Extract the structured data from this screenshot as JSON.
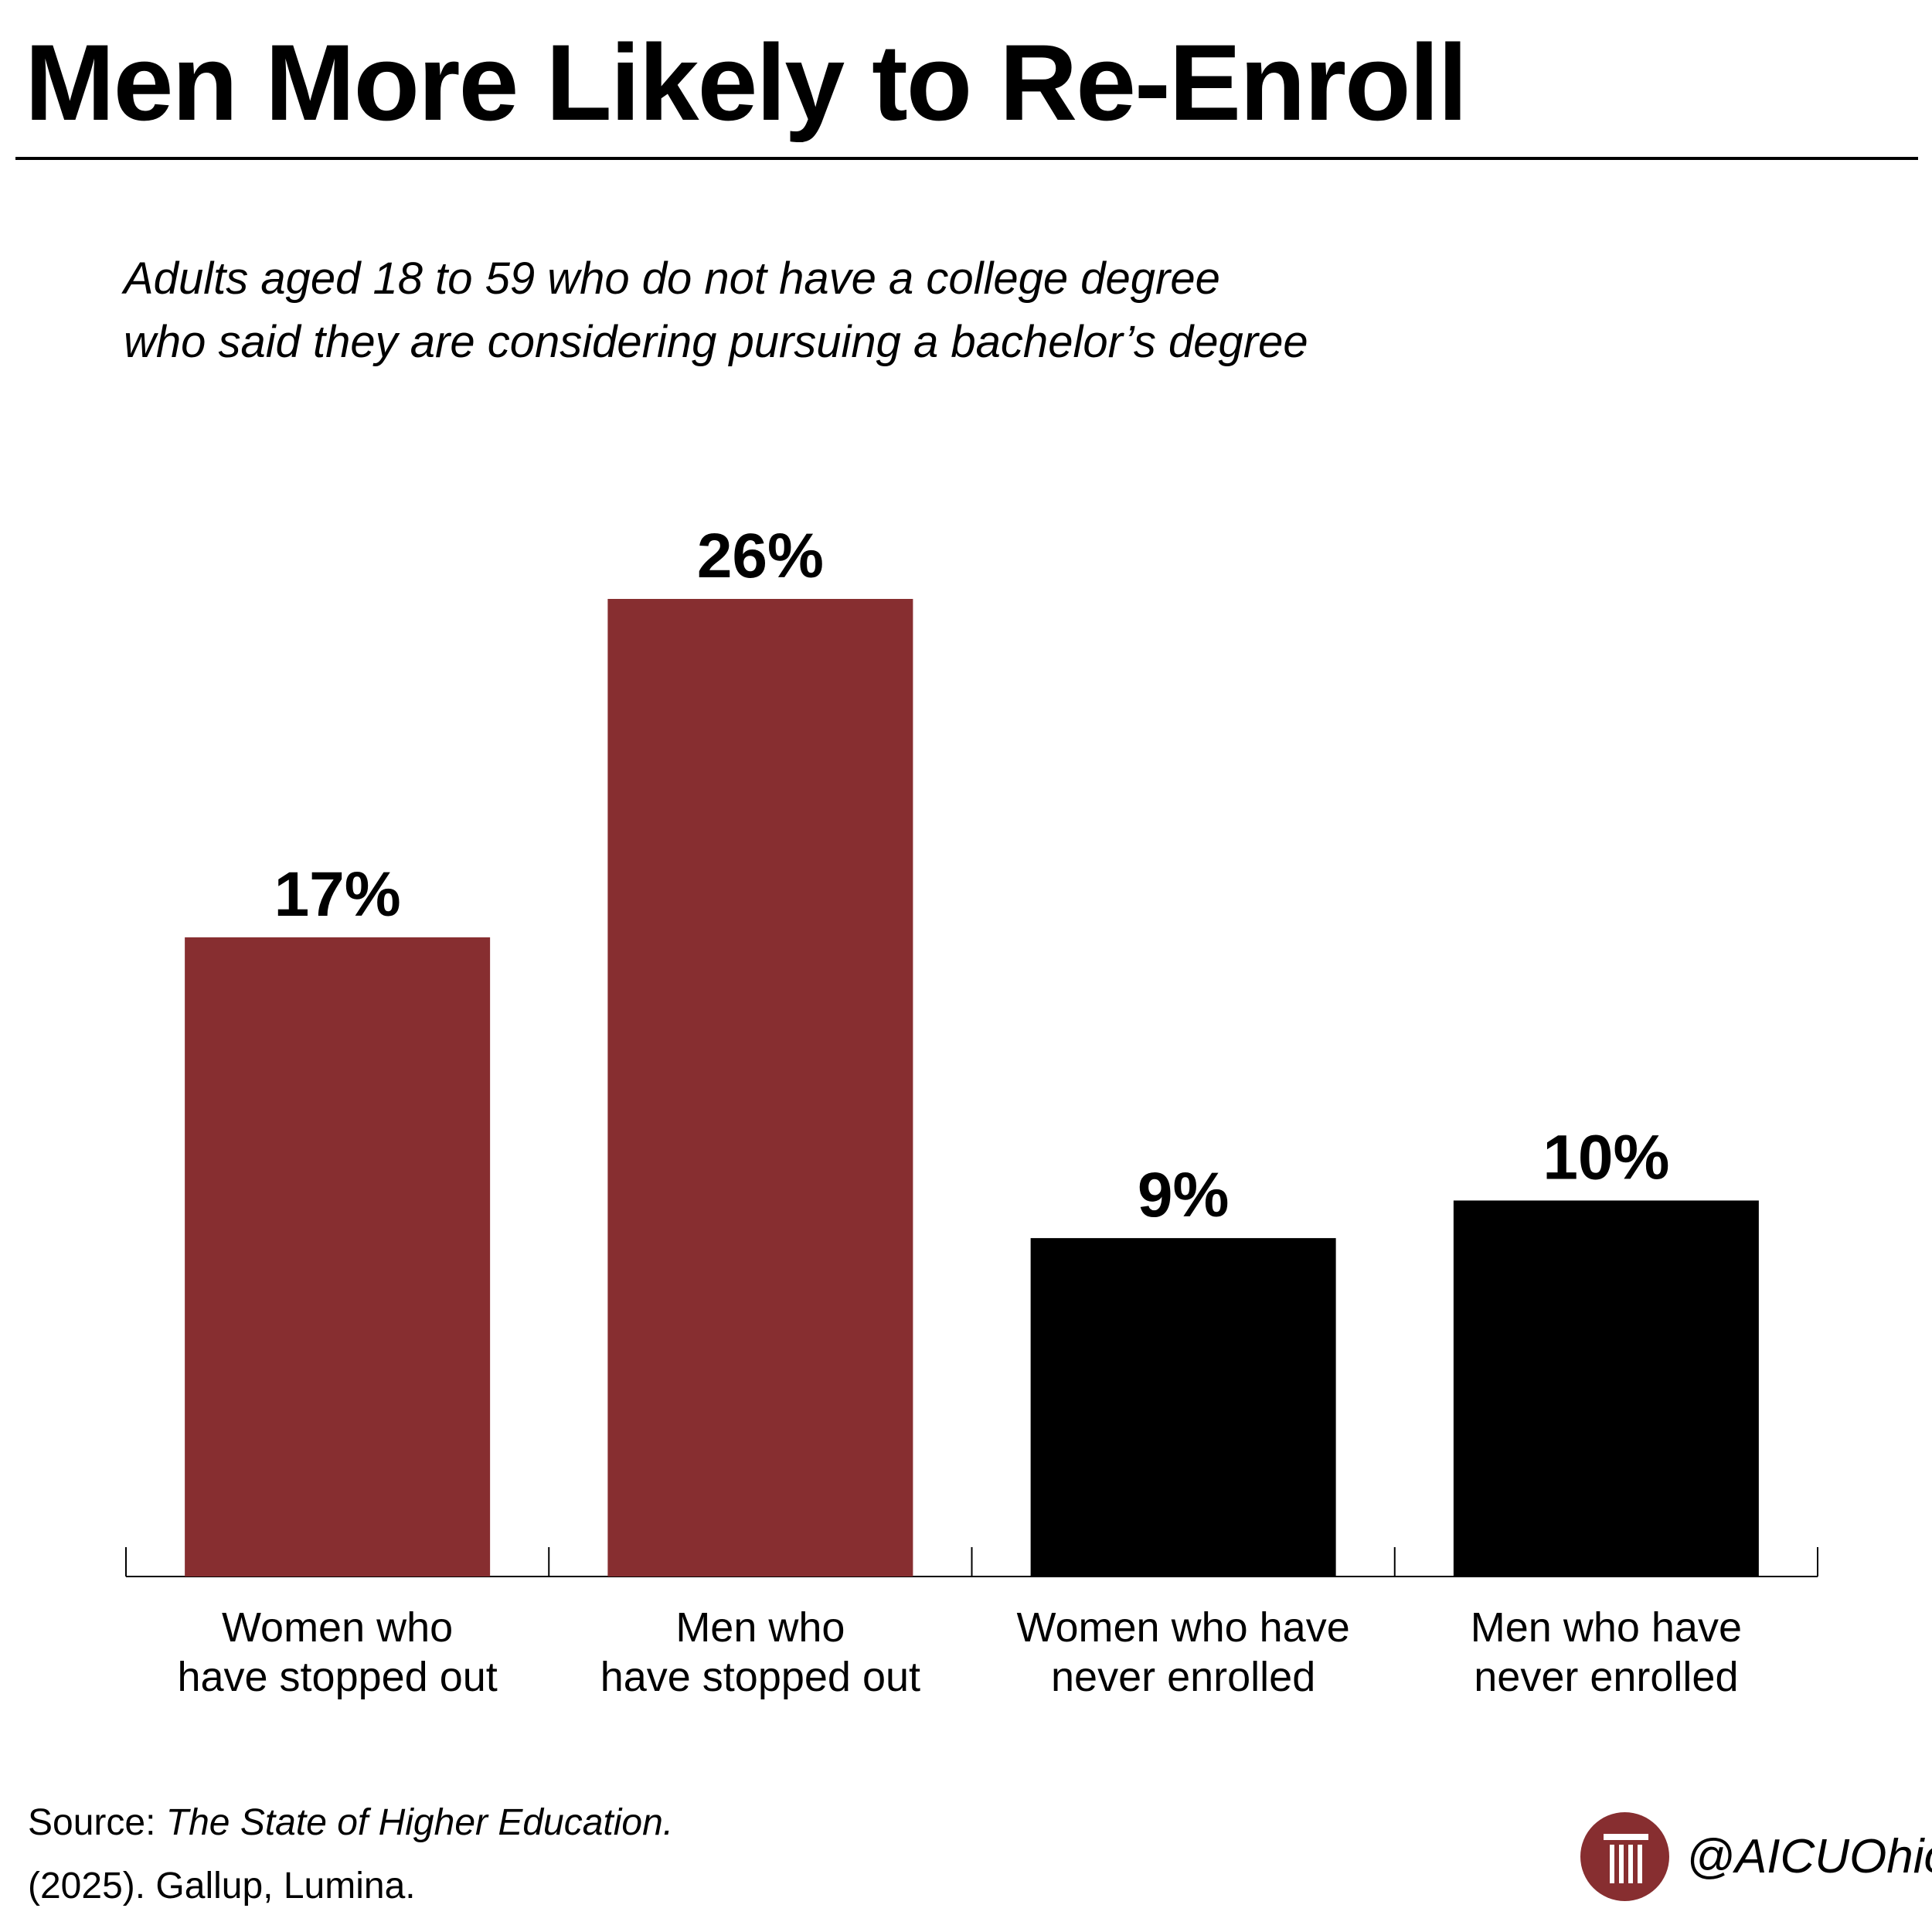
{
  "title": "Men More Likely to Re-Enroll",
  "subtitle_lines": [
    "Adults aged 18 to 59 who do not have a college degree",
    "who said they are considering pursuing a bachelor’s degree"
  ],
  "chart_data": {
    "type": "bar",
    "categories": [
      [
        "Women who",
        "have stopped out"
      ],
      [
        "Men who",
        "have stopped out"
      ],
      [
        "Women who have",
        "never enrolled"
      ],
      [
        "Men who have",
        "never enrolled"
      ]
    ],
    "values": [
      17,
      26,
      9,
      10
    ],
    "value_labels": [
      "17%",
      "26%",
      "9%",
      "10%"
    ],
    "bar_colors": [
      "#872e30",
      "#872e30",
      "#000000",
      "#000000"
    ],
    "ylim": [
      0,
      26
    ],
    "grid": false,
    "legend": "none"
  },
  "source": {
    "prefix": "Source: ",
    "publication": "The State of Higher Education.",
    "line2": "(2025). Gallup, Lumina."
  },
  "brand": {
    "handle": "@AICUOhio",
    "logo_color": "#872e30",
    "logo_icon": "column-logo-icon"
  }
}
